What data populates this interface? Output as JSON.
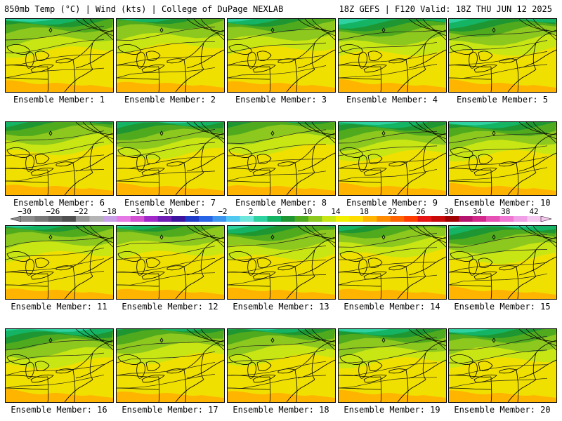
{
  "header": {
    "left_title": "850mb Temp (°C) | Wind (kts) | College of DuPage NEXLAB",
    "right_title": "18Z GEFS | F120 Valid: 18Z THU JUN 12 2025"
  },
  "panels": [
    {
      "label": "Ensemble Member: 1",
      "cold": 0.55
    },
    {
      "label": "Ensemble Member: 2",
      "cold": 0.95
    },
    {
      "label": "Ensemble Member: 3",
      "cold": 0.75
    },
    {
      "label": "Ensemble Member: 4",
      "cold": 0.35
    },
    {
      "label": "Ensemble Member: 5",
      "cold": 0.4
    },
    {
      "label": "Ensemble Member: 6",
      "cold": 0.85
    },
    {
      "label": "Ensemble Member: 7",
      "cold": 0.5
    },
    {
      "label": "Ensemble Member: 8",
      "cold": 1.0
    },
    {
      "label": "Ensemble Member: 9",
      "cold": 0.45
    },
    {
      "label": "Ensemble Member: 10",
      "cold": 0.5
    },
    {
      "label": "Ensemble Member: 11",
      "cold": 0.85
    },
    {
      "label": "Ensemble Member: 12",
      "cold": 0.95
    },
    {
      "label": "Ensemble Member: 13",
      "cold": 0.6
    },
    {
      "label": "Ensemble Member: 14",
      "cold": 0.95
    },
    {
      "label": "Ensemble Member: 15",
      "cold": 0.35
    },
    {
      "label": "Ensemble Member: 16",
      "cold": 0.25
    },
    {
      "label": "Ensemble Member: 17",
      "cold": 0.8
    },
    {
      "label": "Ensemble Member: 18",
      "cold": 0.7
    },
    {
      "label": "Ensemble Member: 19",
      "cold": 0.5
    },
    {
      "label": "Ensemble Member: 20",
      "cold": 0.55
    }
  ],
  "colorbar": {
    "ticks": [
      "-30",
      "-26",
      "-22",
      "-18",
      "-14",
      "-10",
      "-6",
      "-2",
      "2",
      "6",
      "10",
      "14",
      "18",
      "22",
      "26",
      "30",
      "34",
      "38",
      "42"
    ],
    "colors": [
      "#8c8c8c",
      "#787878",
      "#646464",
      "#505050",
      "#969696",
      "#b4b4b4",
      "#c8a0e6",
      "#e678e6",
      "#d250d2",
      "#a028c8",
      "#6e1eb4",
      "#3c14a0",
      "#1e3cc8",
      "#2864e6",
      "#3c96f0",
      "#50c8f0",
      "#6ee6dc",
      "#2ed2a0",
      "#14b464",
      "#1e9632",
      "#50aa1e",
      "#8cc81e",
      "#c8e614",
      "#f0f000",
      "#ffdc00",
      "#ffb400",
      "#ff8c00",
      "#ff6400",
      "#ff3c00",
      "#e61414",
      "#c80a0a",
      "#a00000",
      "#b4146e",
      "#d2288c",
      "#e650b4",
      "#f078d2",
      "#f0a0e6",
      "#f5c8f0"
    ]
  }
}
